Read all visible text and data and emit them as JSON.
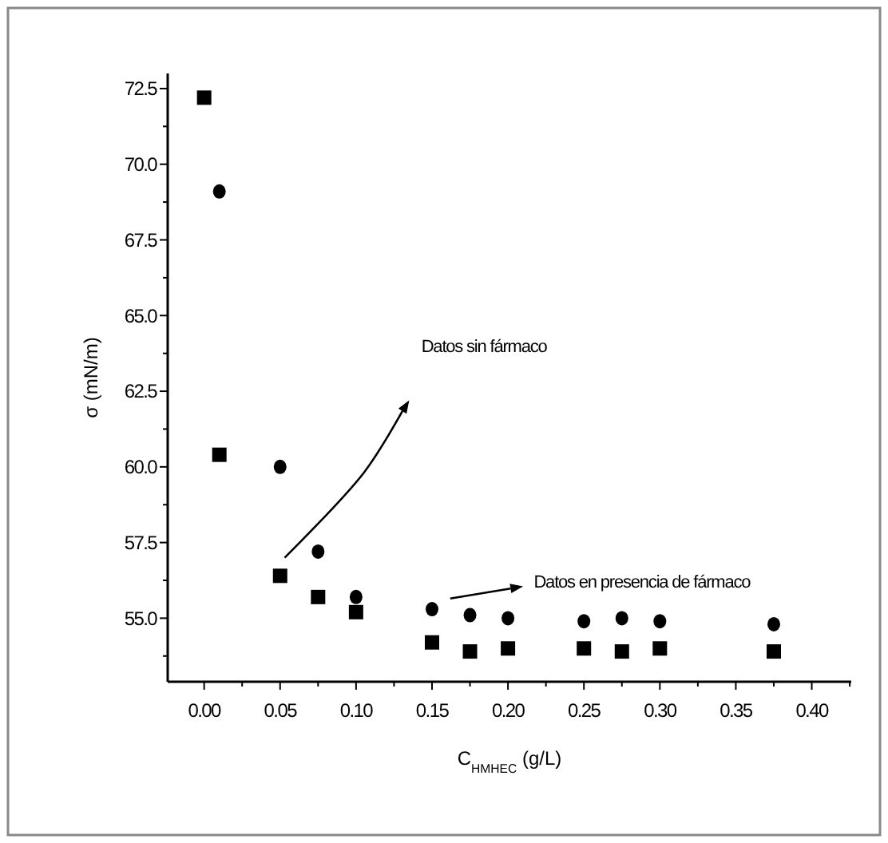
{
  "chart_data": {
    "type": "scatter",
    "xlabel": "C$_{HMHEC}$ (g/L)",
    "ylabel": "σ (mN/m)",
    "x": [
      0,
      0.01,
      0.05,
      0.075,
      0.1,
      0.15,
      0.175,
      0.2,
      0.25,
      0.275,
      0.3,
      0.375
    ],
    "series": [
      {
        "color": "#000000",
        "marker": "circle",
        "values": [
          null,
          69.1,
          60.0,
          57.2,
          55.7,
          55.3,
          55.1,
          55.0,
          54.9,
          55.0,
          54.9,
          54.8
        ]
      },
      {
        "color": "#000000",
        "marker": "square",
        "values": [
          72.2,
          60.4,
          56.4,
          55.7,
          55.2,
          54.2,
          53.9,
          54.0,
          54.0,
          53.9,
          54.0,
          53.9
        ]
      }
    ],
    "xlim": [
      -0.024,
      0.426
    ],
    "ylim": [
      52.9,
      73.0
    ],
    "xticks": [
      {
        "value": 0,
        "label": "0.00"
      },
      {
        "value": 0.025,
        "label": null
      },
      {
        "value": 0.05,
        "label": "0.05"
      },
      {
        "value": 0.075,
        "label": null
      },
      {
        "value": 0.1,
        "label": "0.10"
      },
      {
        "value": 0.125,
        "label": null
      },
      {
        "value": 0.15,
        "label": "0.15"
      },
      {
        "value": 0.175,
        "label": null
      },
      {
        "value": 0.2,
        "label": "0.20"
      },
      {
        "value": 0.225,
        "label": null
      },
      {
        "value": 0.25,
        "label": "0.25"
      },
      {
        "value": 0.275,
        "label": null
      },
      {
        "value": 0.3,
        "label": "0.30"
      },
      {
        "value": 0.325,
        "label": null
      },
      {
        "value": 0.35,
        "label": "0.35"
      },
      {
        "value": 0.375,
        "label": null
      },
      {
        "value": 0.4,
        "label": "0.40"
      },
      {
        "value": 0.425,
        "label": null
      }
    ],
    "yticks": [
      {
        "value": 53.75,
        "label": null
      },
      {
        "value": 55,
        "label": "55.0"
      },
      {
        "value": 56.25,
        "label": null
      },
      {
        "value": 57.5,
        "label": "57.5"
      },
      {
        "value": 58.75,
        "label": null
      },
      {
        "value": 60,
        "label": "60.0"
      },
      {
        "value": 61.25,
        "label": null
      },
      {
        "value": 62.5,
        "label": "62.5"
      },
      {
        "value": 63.75,
        "label": null
      },
      {
        "value": 65,
        "label": "65.0"
      },
      {
        "value": 66.25,
        "label": null
      },
      {
        "value": 67.5,
        "label": "67.5"
      },
      {
        "value": 68.75,
        "label": null
      },
      {
        "value": 70,
        "label": "70.0"
      },
      {
        "value": 71.25,
        "label": null
      },
      {
        "value": 72.5,
        "label": "72.5"
      }
    ],
    "annotations": [
      "Datos sin fármaco",
      "Datos en presencia de fármaco"
    ]
  }
}
